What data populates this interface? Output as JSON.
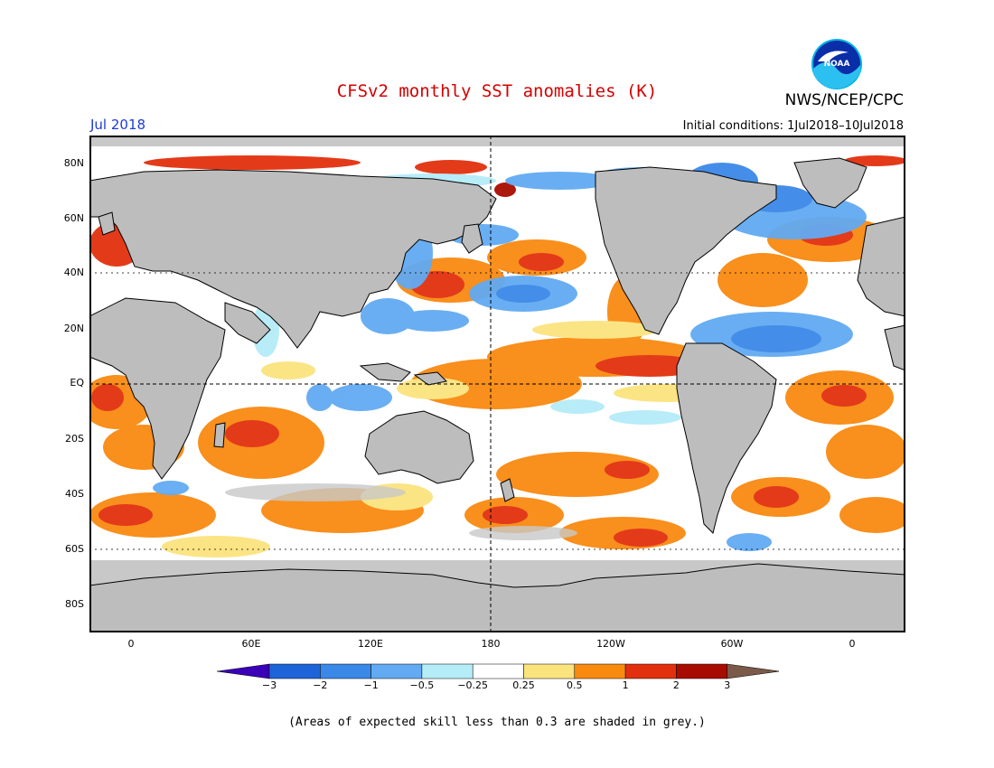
{
  "title": "CFSv2 monthly SST anomalies (K)",
  "org": "NWS/NCEP/CPC",
  "logo_text": "NOAA",
  "valid_month": "Jul 2018",
  "initial_conditions": "Initial conditions: 1Jul2018–10Jul2018",
  "footnote": "(Areas of expected skill less than 0.3 are shaded in grey.)",
  "lat_ticks": [
    "80N",
    "60N",
    "40N",
    "20N",
    "EQ",
    "20S",
    "40S",
    "60S",
    "80S"
  ],
  "lon_ticks": [
    "0",
    "60E",
    "120E",
    "180",
    "120W",
    "60W",
    "0"
  ],
  "colorbar": {
    "labels": [
      "−3",
      "−2",
      "−1",
      "−0.5",
      "−0.25",
      "0.25",
      "0.5",
      "1",
      "2",
      "3"
    ],
    "colors": [
      "#3b00b8",
      "#1e64d8",
      "#3a88e8",
      "#62aaf2",
      "#b4ecf8",
      "#ffffff",
      "#fbe37e",
      "#f98a10",
      "#e2300e",
      "#a80c00",
      "#7b5a4a"
    ]
  },
  "colors": {
    "land": "#bdbdbd",
    "low_skill_grey": "#c8c8c8",
    "title_red": "#d40000",
    "month_blue": "#1d3cd8"
  }
}
